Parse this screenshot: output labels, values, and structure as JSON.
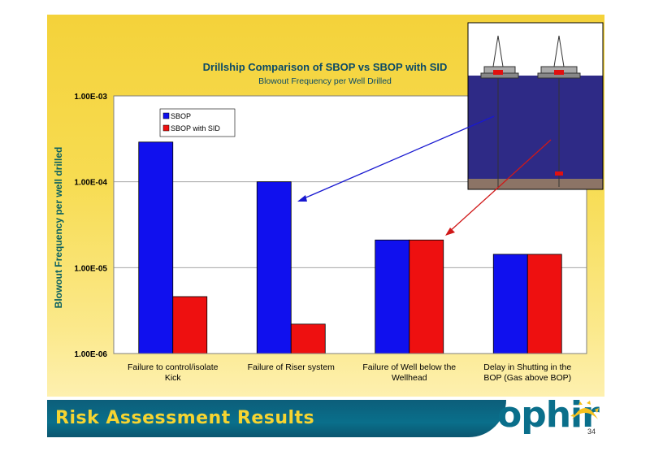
{
  "footer": {
    "title": "Risk Assessment Results",
    "logo_text": "ophir",
    "page_number": "34"
  },
  "colors": {
    "sbop": "#1010ee",
    "sbop_sid": "#ee1010",
    "arrow_blue": "#1818d0",
    "arrow_red": "#d01818",
    "title": "#0a4a66"
  },
  "chart_data": {
    "type": "bar",
    "title": "Drillship Comparison of SBOP vs SBOP with SID",
    "subtitle": "Blowout Frequency per Well Drilled",
    "ylabel": "Blowout Frequency per well drilled",
    "xlabel": "",
    "yscale": "log",
    "ylim": [
      1e-06,
      0.001
    ],
    "yticks": [
      {
        "value": 0.001,
        "label": "1.00E-03"
      },
      {
        "value": 0.0001,
        "label": "1.00E-04"
      },
      {
        "value": 1e-05,
        "label": "1.00E-05"
      },
      {
        "value": 1e-06,
        "label": "1.00E-06"
      }
    ],
    "categories": [
      [
        "Failure to control/isolate",
        "Kick"
      ],
      [
        "Failure of Riser system"
      ],
      [
        "Failure of Well below the",
        "Wellhead"
      ],
      [
        "Delay in Shutting in the",
        "BOP (Gas above BOP)"
      ]
    ],
    "series": [
      {
        "name": "SBOP",
        "values": [
          0.00029,
          0.0001,
          2.1e-05,
          1.43e-05
        ]
      },
      {
        "name": "SBOP with SID",
        "values": [
          4.6e-06,
          2.2e-06,
          2.1e-05,
          1.43e-05
        ]
      }
    ],
    "grid": true,
    "legend": "top-left"
  }
}
